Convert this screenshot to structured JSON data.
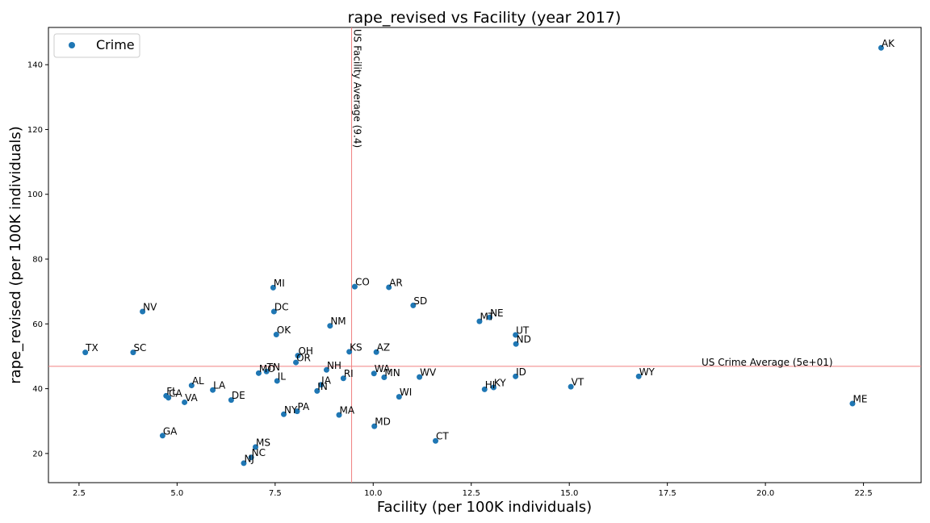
{
  "chart_data": {
    "type": "scatter",
    "title": "rape_revised vs Facility (year 2017)",
    "xlabel": "Facility (per 100K individuals)",
    "ylabel": "rape_revised (per 100K individuals)",
    "xlim": [
      1.72,
      23.97
    ],
    "ylim": [
      11,
      151.5
    ],
    "xticks": [
      2.5,
      5.0,
      7.5,
      10.0,
      12.5,
      15.0,
      17.5,
      20.0,
      22.5
    ],
    "xtick_labels": [
      "2.5",
      "5.0",
      "7.5",
      "10.0",
      "12.5",
      "15.0",
      "17.5",
      "20.0",
      "22.5"
    ],
    "yticks": [
      20,
      40,
      60,
      80,
      100,
      120,
      140
    ],
    "ytick_labels": [
      "20",
      "40",
      "60",
      "80",
      "100",
      "120",
      "140"
    ],
    "grid": false,
    "legend": {
      "position": "upper-left",
      "entries": [
        "Crime"
      ]
    },
    "series": [
      {
        "name": "Crime",
        "color": "#1f77b4",
        "points": [
          {
            "label": "AK",
            "x": 22.95,
            "y": 145.2
          },
          {
            "label": "TX",
            "x": 2.66,
            "y": 51.2
          },
          {
            "label": "SC",
            "x": 3.88,
            "y": 51.2
          },
          {
            "label": "NV",
            "x": 4.12,
            "y": 63.8
          },
          {
            "label": "GA",
            "x": 4.63,
            "y": 25.5
          },
          {
            "label": "FL",
            "x": 4.72,
            "y": 37.8
          },
          {
            "label": "CA",
            "x": 4.78,
            "y": 37.2
          },
          {
            "label": "VA",
            "x": 5.19,
            "y": 35.8
          },
          {
            "label": "AL",
            "x": 5.37,
            "y": 41.0
          },
          {
            "label": "LA",
            "x": 5.91,
            "y": 39.6
          },
          {
            "label": "DE",
            "x": 6.38,
            "y": 36.5
          },
          {
            "label": "NJ",
            "x": 6.7,
            "y": 17.0
          },
          {
            "label": "NC",
            "x": 6.89,
            "y": 18.8
          },
          {
            "label": "MS",
            "x": 7.0,
            "y": 22.0
          },
          {
            "label": "MO",
            "x": 7.08,
            "y": 44.8
          },
          {
            "label": "TN",
            "x": 7.28,
            "y": 45.3
          },
          {
            "label": "MI",
            "x": 7.45,
            "y": 71.2
          },
          {
            "label": "DC",
            "x": 7.47,
            "y": 63.8
          },
          {
            "label": "OK",
            "x": 7.53,
            "y": 56.7
          },
          {
            "label": "IL",
            "x": 7.55,
            "y": 42.4
          },
          {
            "label": "NY",
            "x": 7.72,
            "y": 32.1
          },
          {
            "label": "OR",
            "x": 8.03,
            "y": 48.1
          },
          {
            "label": "OH",
            "x": 8.08,
            "y": 50.2
          },
          {
            "label": "PA",
            "x": 8.06,
            "y": 33.0
          },
          {
            "label": "IN",
            "x": 8.57,
            "y": 39.3
          },
          {
            "label": "IA",
            "x": 8.67,
            "y": 41.2
          },
          {
            "label": "NH",
            "x": 8.81,
            "y": 45.8
          },
          {
            "label": "NM",
            "x": 8.9,
            "y": 59.4
          },
          {
            "label": "MA",
            "x": 9.13,
            "y": 31.9
          },
          {
            "label": "RI",
            "x": 9.24,
            "y": 43.2
          },
          {
            "label": "KS",
            "x": 9.39,
            "y": 51.4
          },
          {
            "label": "CO",
            "x": 9.53,
            "y": 71.5
          },
          {
            "label": "WA",
            "x": 10.02,
            "y": 44.7
          },
          {
            "label": "MD",
            "x": 10.03,
            "y": 28.4
          },
          {
            "label": "AZ",
            "x": 10.08,
            "y": 51.3
          },
          {
            "label": "MN",
            "x": 10.28,
            "y": 43.5
          },
          {
            "label": "AR",
            "x": 10.4,
            "y": 71.3
          },
          {
            "label": "WI",
            "x": 10.66,
            "y": 37.5
          },
          {
            "label": "SD",
            "x": 11.02,
            "y": 65.7
          },
          {
            "label": "WV",
            "x": 11.18,
            "y": 43.6
          },
          {
            "label": "CT",
            "x": 11.59,
            "y": 23.9
          },
          {
            "label": "MT",
            "x": 12.71,
            "y": 60.8
          },
          {
            "label": "HI",
            "x": 12.84,
            "y": 39.8
          },
          {
            "label": "NE",
            "x": 12.97,
            "y": 62.0
          },
          {
            "label": "KY",
            "x": 13.07,
            "y": 40.4
          },
          {
            "label": "ID",
            "x": 13.63,
            "y": 43.8
          },
          {
            "label": "UT",
            "x": 13.63,
            "y": 56.6
          },
          {
            "label": "ND",
            "x": 13.64,
            "y": 53.8
          },
          {
            "label": "VT",
            "x": 15.04,
            "y": 40.6
          },
          {
            "label": "WY",
            "x": 16.77,
            "y": 43.8
          },
          {
            "label": "ME",
            "x": 22.22,
            "y": 35.4
          }
        ]
      }
    ],
    "reference_lines": [
      {
        "orientation": "vertical",
        "value": 9.45,
        "label": "US Facility Average (9.4)",
        "color": "#f08080"
      },
      {
        "orientation": "horizontal",
        "value": 46.9,
        "label": "US Crime Average (5e+01)",
        "color": "#f08080"
      }
    ]
  }
}
